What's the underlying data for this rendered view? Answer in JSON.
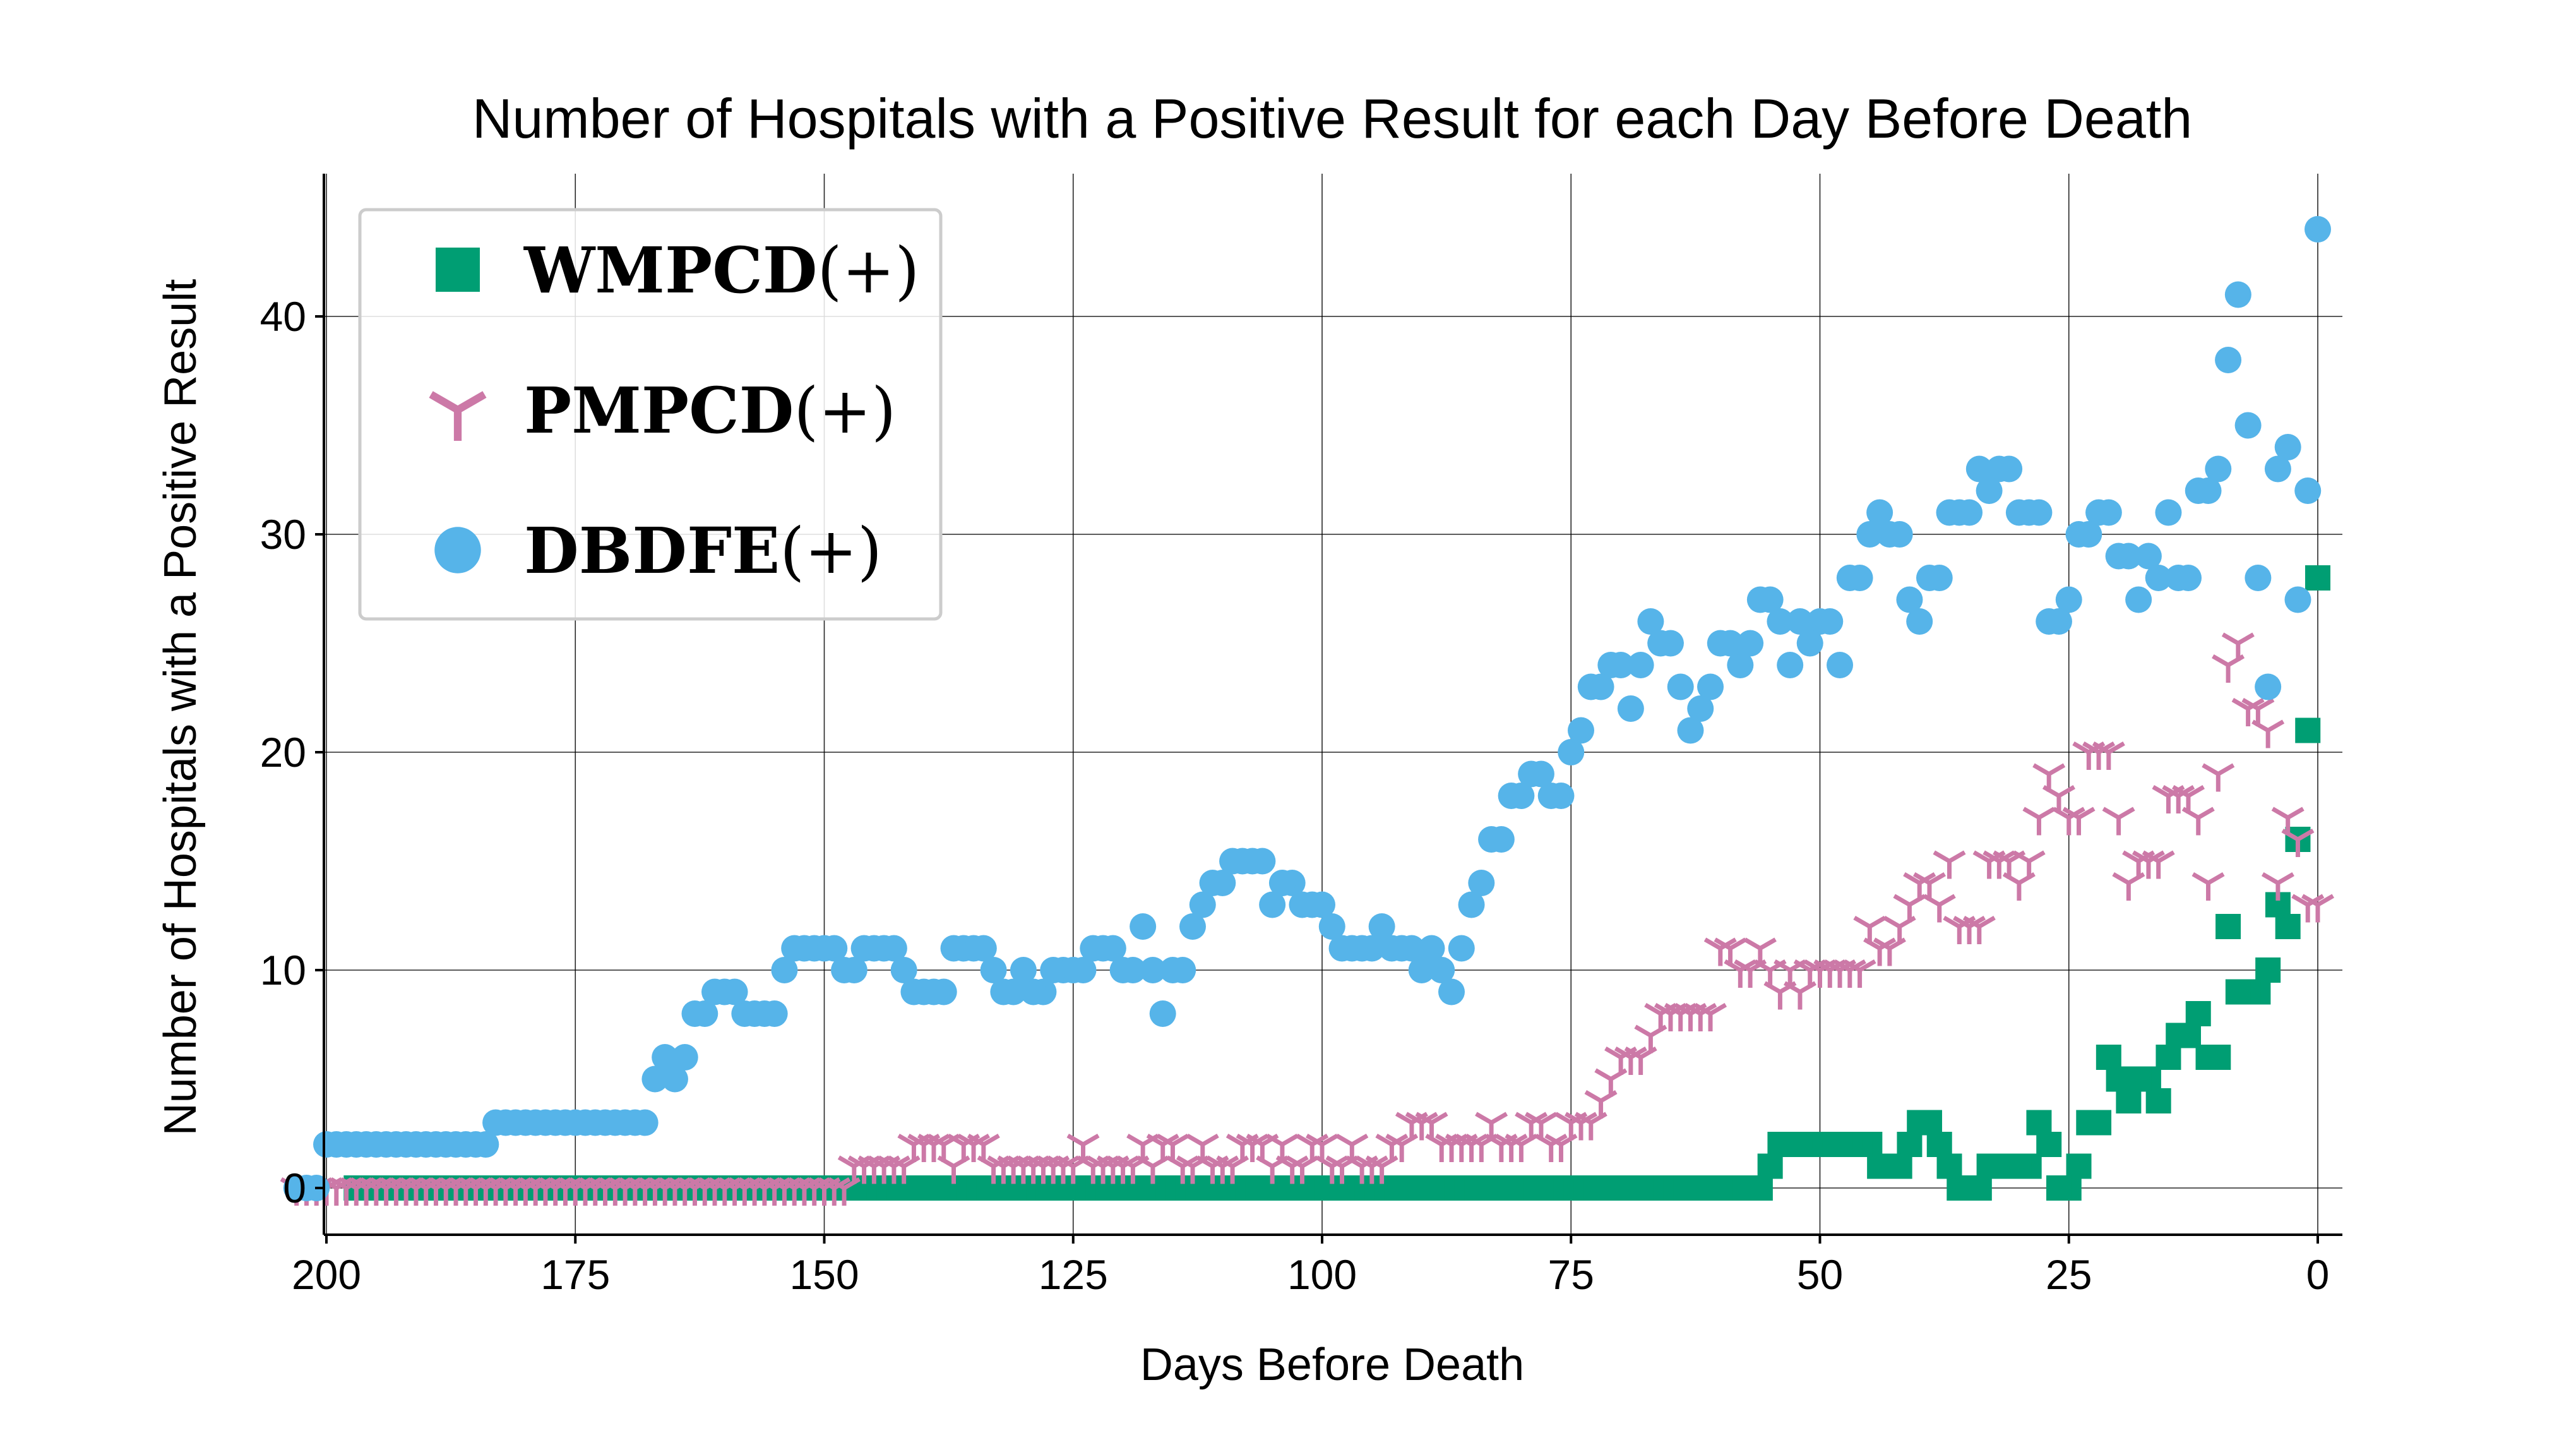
{
  "chart_data": {
    "type": "scatter",
    "title": "Number of Hospitals with a Positive Result for each Day Before Death",
    "xlabel": "Days Before Death",
    "ylabel": "Number of Hospitals with a Positive Result",
    "xlim": [
      200,
      0
    ],
    "ylim": [
      -2.3,
      46
    ],
    "xticks": [
      200,
      175,
      150,
      125,
      100,
      75,
      50,
      25,
      0
    ],
    "yticks": [
      0,
      10,
      20,
      30,
      40
    ],
    "grid": true,
    "legend_position": "top-left",
    "series": [
      {
        "name": "WMPCD",
        "legend_suffix": "(+)",
        "marker": "square",
        "color": "#009e73",
        "values": [
          28,
          21,
          16,
          12,
          13,
          10,
          9,
          9,
          9,
          12,
          6,
          6,
          8,
          7,
          7,
          6,
          4,
          5,
          5,
          4,
          5,
          6,
          3,
          3,
          1,
          0,
          0,
          2,
          3,
          1,
          1,
          1,
          1,
          1,
          0,
          0,
          0,
          1,
          2,
          3,
          3,
          2,
          1,
          1,
          1,
          2,
          2,
          2,
          2,
          2,
          2,
          2,
          2,
          2,
          2,
          1,
          0,
          0,
          0,
          0,
          0,
          0,
          0,
          0,
          0,
          0,
          0,
          0,
          0,
          0,
          0,
          0,
          0,
          0,
          0,
          0,
          0,
          0,
          0,
          0,
          0,
          0,
          0,
          0,
          0,
          0,
          0,
          0,
          0,
          0,
          0,
          0,
          0,
          0,
          0,
          0,
          0,
          0,
          0,
          0,
          0,
          0,
          0,
          0,
          0,
          0,
          0,
          0,
          0,
          0,
          0,
          0,
          0,
          0,
          0,
          0,
          0,
          0,
          0,
          0,
          0,
          0,
          0,
          0,
          0,
          0,
          0,
          0,
          0,
          0,
          0,
          0,
          0,
          0,
          0,
          0,
          0,
          0,
          0,
          0,
          0,
          0,
          0,
          0,
          0,
          0,
          0,
          0,
          0,
          0,
          0,
          0,
          0,
          0,
          0,
          0,
          0,
          0,
          0,
          0,
          0,
          0,
          0,
          0,
          0,
          0,
          0,
          0,
          0,
          0,
          0,
          0,
          0,
          0,
          0,
          0,
          0,
          0,
          0,
          0,
          0,
          0,
          0,
          0,
          0,
          0,
          0,
          0,
          0,
          0,
          0,
          0,
          0,
          0,
          0,
          0,
          0,
          0
        ]
      },
      {
        "name": "PMPCD",
        "legend_suffix": "(+)",
        "marker": "tri_down",
        "color": "#cc79a7",
        "values": [
          13,
          13,
          16,
          17,
          14,
          21,
          22,
          22,
          25,
          24,
          19,
          14,
          17,
          18,
          18,
          18,
          15,
          15,
          15,
          14,
          17,
          20,
          20,
          20,
          17,
          17,
          18,
          19,
          17,
          15,
          14,
          15,
          15,
          15,
          12,
          12,
          12,
          15,
          13,
          14,
          14,
          13,
          12,
          11,
          11,
          12,
          10,
          10,
          10,
          10,
          10,
          10,
          9,
          10,
          9,
          10,
          11,
          10,
          10,
          11,
          11,
          8,
          8,
          8,
          8,
          8,
          8,
          7,
          6,
          6,
          6,
          5,
          4,
          3,
          3,
          3,
          2,
          2,
          3,
          3,
          2,
          2,
          2,
          3,
          2,
          2,
          2,
          2,
          2,
          3,
          3,
          3,
          2,
          2,
          1,
          1,
          1,
          2,
          1,
          1,
          2,
          2,
          1,
          1,
          2,
          1,
          2,
          2,
          2,
          1,
          1,
          1,
          2,
          1,
          1,
          2,
          2,
          1,
          2,
          1,
          1,
          1,
          1,
          1,
          2,
          1,
          1,
          1,
          1,
          1,
          1,
          1,
          1,
          1,
          2,
          2,
          2,
          1,
          2,
          2,
          2,
          2,
          1,
          1,
          1,
          1,
          1,
          1,
          0,
          0,
          0,
          0,
          0,
          0,
          0,
          0,
          0,
          0,
          0,
          0,
          0,
          0,
          0,
          0,
          0,
          0,
          0,
          0,
          0,
          0,
          0,
          0,
          0,
          0,
          0,
          0,
          0,
          0,
          0,
          0,
          0,
          0,
          0,
          0,
          0,
          0,
          0,
          0,
          0,
          0,
          0,
          0,
          0,
          0,
          0,
          0,
          0,
          0,
          0,
          0,
          0,
          0,
          0,
          0
        ]
      },
      {
        "name": "DBDFE",
        "legend_suffix": "(+)",
        "marker": "circle",
        "color": "#56b4e9",
        "values": [
          44,
          32,
          27,
          34,
          33,
          23,
          28,
          35,
          41,
          38,
          33,
          32,
          32,
          28,
          28,
          31,
          28,
          29,
          27,
          29,
          29,
          31,
          31,
          30,
          30,
          27,
          26,
          26,
          31,
          31,
          31,
          33,
          33,
          32,
          33,
          31,
          31,
          31,
          28,
          28,
          26,
          27,
          30,
          30,
          31,
          30,
          28,
          28,
          24,
          26,
          26,
          25,
          26,
          24,
          26,
          27,
          27,
          25,
          24,
          25,
          25,
          23,
          22,
          21,
          23,
          25,
          25,
          26,
          24,
          22,
          24,
          24,
          23,
          23,
          21,
          20,
          18,
          18,
          19,
          19,
          18,
          18,
          16,
          16,
          14,
          13,
          11,
          9,
          10,
          11,
          10,
          11,
          11,
          11,
          12,
          11,
          11,
          11,
          11,
          12,
          13,
          13,
          13,
          14,
          14,
          13,
          15,
          15,
          15,
          15,
          14,
          14,
          13,
          12,
          10,
          10,
          8,
          10,
          12,
          10,
          10,
          11,
          11,
          11,
          10,
          10,
          10,
          10,
          9,
          9,
          10,
          9,
          9,
          10,
          11,
          11,
          11,
          11,
          9,
          9,
          9,
          9,
          10,
          11,
          11,
          11,
          11,
          10,
          10,
          11,
          11,
          11,
          11,
          11,
          10,
          8,
          8,
          8,
          8,
          9,
          9,
          9,
          8,
          8,
          6,
          5,
          6,
          5,
          3,
          3,
          3,
          3,
          3,
          3,
          3,
          3,
          3,
          3,
          3,
          3,
          3,
          3,
          3,
          3,
          2,
          2,
          2,
          2,
          2,
          2,
          2,
          2,
          2,
          2,
          2,
          2,
          2,
          2,
          2,
          2,
          2,
          0,
          0,
          0
        ]
      }
    ]
  }
}
